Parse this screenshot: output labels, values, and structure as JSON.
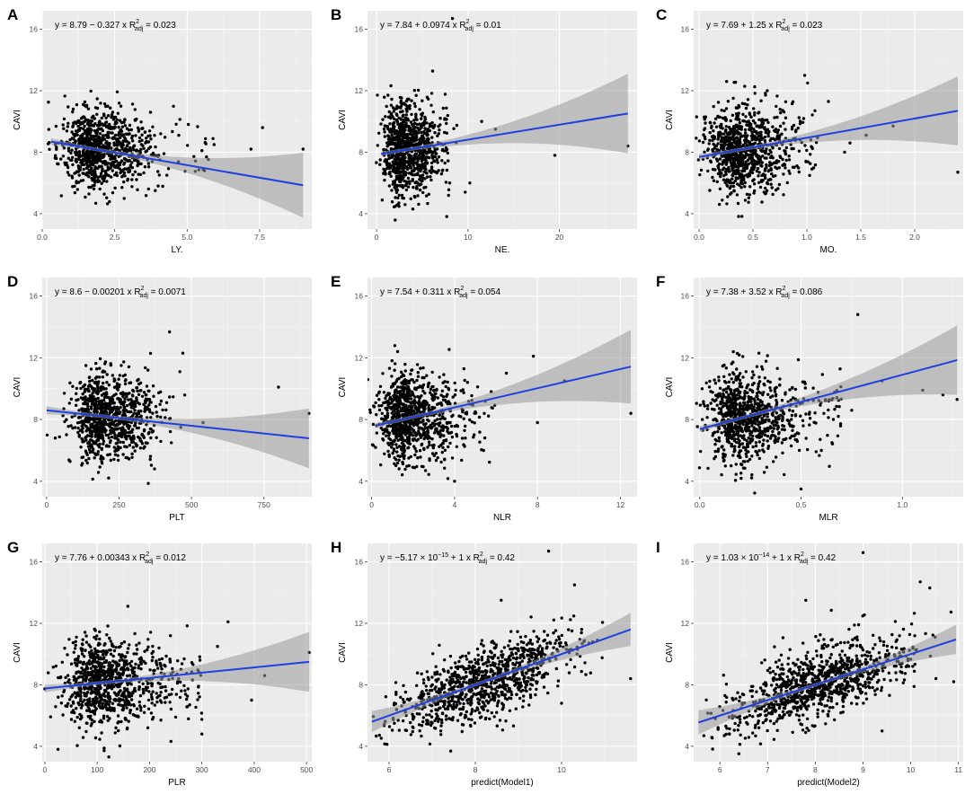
{
  "figure": {
    "type": "multi-panel scatter with linear regression",
    "colors": {
      "panel_bg": "#ebebeb",
      "grid_major": "#ffffff",
      "grid_minor": "#f5f5f5",
      "point": "#000000",
      "line": "#1f3fe0",
      "band": "#999999"
    }
  },
  "chart_data": [
    {
      "panel": "A",
      "type": "scatter",
      "xlabel": "LY.",
      "ylabel": "CAVI",
      "xlim": [
        0,
        9.3
      ],
      "ylim": [
        3,
        17.2
      ],
      "x_ticks": [
        0.0,
        2.5,
        5.0,
        7.5
      ],
      "x_tick_labels": [
        "0.0",
        "2.5",
        "5.0",
        "7.5"
      ],
      "y_ticks": [
        4,
        8,
        12,
        16
      ],
      "y_tick_labels": [
        "4",
        "8",
        "12",
        "16"
      ],
      "equation": {
        "lhs": "y = 8.79 − 0.327 x",
        "r": "R",
        "sup": "2",
        "sub": "adj",
        "rhs": " = 0.023"
      },
      "fit": {
        "intercept": 8.79,
        "slope": -0.327,
        "x_range": [
          0.3,
          9.0
        ]
      },
      "cloud": {
        "center": [
          1.9,
          8.2
        ],
        "sd": [
          0.6,
          1.3
        ],
        "n": 900,
        "extra_x": [
          [
            3.5,
            6.0
          ],
          0.03
        ]
      },
      "outliers": [
        [
          7.6,
          9.6
        ],
        [
          7.2,
          8.2
        ],
        [
          9.0,
          8.2
        ],
        [
          5.6,
          6.8
        ],
        [
          4.3,
          6.5
        ],
        [
          4.0,
          5.8
        ],
        [
          3.9,
          5.5
        ],
        [
          4.2,
          7.9
        ]
      ]
    },
    {
      "panel": "B",
      "type": "scatter",
      "xlabel": "NE.",
      "ylabel": "CAVI",
      "xlim": [
        -1,
        28.5
      ],
      "ylim": [
        3,
        17.2
      ],
      "x_ticks": [
        0,
        10,
        20
      ],
      "x_tick_labels": [
        "0",
        "10",
        "20"
      ],
      "y_ticks": [
        4,
        8,
        12,
        16
      ],
      "y_tick_labels": [
        "4",
        "8",
        "12",
        "16"
      ],
      "equation": {
        "lhs": "y = 7.84 + 0.0974 x",
        "r": "R",
        "sup": "2",
        "sub": "adj",
        "rhs": " = 0.01"
      },
      "fit": {
        "intercept": 7.84,
        "slope": 0.0974,
        "x_range": [
          0.5,
          27.5
        ]
      },
      "cloud": {
        "center": [
          3.0,
          8.2
        ],
        "sd": [
          1.1,
          1.5
        ],
        "n": 900,
        "extra_x": [
          [
            5,
            8
          ],
          0.05
        ]
      },
      "outliers": [
        [
          8.3,
          16.7
        ],
        [
          27.5,
          8.4
        ],
        [
          19.5,
          7.8
        ],
        [
          13.0,
          9.5
        ],
        [
          10.2,
          6.0
        ],
        [
          11.5,
          10.0
        ],
        [
          9.7,
          5.4
        ],
        [
          8.0,
          6.0
        ]
      ]
    },
    {
      "panel": "C",
      "type": "scatter",
      "xlabel": "MO.",
      "ylabel": "CAVI",
      "xlim": [
        -0.05,
        2.45
      ],
      "ylim": [
        3,
        17.2
      ],
      "x_ticks": [
        0.0,
        0.5,
        1.0,
        1.5,
        2.0
      ],
      "x_tick_labels": [
        "0.0",
        "0.5",
        "1.0",
        "1.5",
        "2.0"
      ],
      "y_ticks": [
        4,
        8,
        12,
        16
      ],
      "y_tick_labels": [
        "4",
        "8",
        "12",
        "16"
      ],
      "equation": {
        "lhs": "y = 7.69 + 1.25 x",
        "r": "R",
        "sup": "2",
        "sub": "adj",
        "rhs": " = 0.023"
      },
      "fit": {
        "intercept": 7.69,
        "slope": 1.25,
        "x_range": [
          0.0,
          2.4
        ]
      },
      "cloud": {
        "center": [
          0.38,
          8.3
        ],
        "sd": [
          0.15,
          1.4
        ],
        "n": 900,
        "extra_x": [
          [
            0.7,
            1.1
          ],
          0.04
        ]
      },
      "outliers": [
        [
          2.4,
          6.7
        ],
        [
          1.8,
          9.7
        ],
        [
          1.55,
          9.1
        ],
        [
          1.2,
          11.3
        ],
        [
          0.98,
          13.0
        ],
        [
          1.35,
          8.0
        ],
        [
          1.4,
          8.6
        ]
      ]
    },
    {
      "panel": "D",
      "type": "scatter",
      "xlabel": "PLT",
      "ylabel": "CAVI",
      "xlim": [
        -15,
        915
      ],
      "ylim": [
        3,
        17.2
      ],
      "x_ticks": [
        0,
        250,
        500,
        750
      ],
      "x_tick_labels": [
        "0",
        "250",
        "500",
        "750"
      ],
      "y_ticks": [
        4,
        8,
        12,
        16
      ],
      "y_tick_labels": [
        "4",
        "8",
        "12",
        "16"
      ],
      "equation": {
        "lhs": "y = 8.6 − 0.00201 x",
        "r": "R",
        "sup": "2",
        "sub": "adj",
        "rhs": " = 0.0071"
      },
      "fit": {
        "intercept": 8.6,
        "slope": -0.00201,
        "x_range": [
          0,
          905
        ]
      },
      "cloud": {
        "center": [
          200,
          8.2
        ],
        "sd": [
          55,
          1.4
        ],
        "n": 900,
        "extra_x": [
          [
            320,
            480
          ],
          0.02
        ]
      },
      "outliers": [
        [
          905,
          8.4
        ],
        [
          800,
          10.1
        ],
        [
          540,
          7.8
        ],
        [
          470,
          12.3
        ],
        [
          460,
          11.1
        ],
        [
          2,
          7.0
        ],
        [
          350,
          11.2
        ],
        [
          30,
          6.8
        ]
      ]
    },
    {
      "panel": "E",
      "type": "scatter",
      "xlabel": "NLR",
      "ylabel": "CAVI",
      "xlim": [
        -0.2,
        12.8
      ],
      "ylim": [
        3,
        17.2
      ],
      "x_ticks": [
        0,
        4,
        8,
        12
      ],
      "x_tick_labels": [
        "0",
        "4",
        "8",
        "12"
      ],
      "y_ticks": [
        4,
        8,
        12,
        16
      ],
      "y_tick_labels": [
        "4",
        "8",
        "12",
        "16"
      ],
      "equation": {
        "lhs": "y = 7.54 + 0.311 x",
        "r": "R",
        "sup": "2",
        "sub": "adj",
        "rhs": " = 0.054"
      },
      "fit": {
        "intercept": 7.54,
        "slope": 0.311,
        "x_range": [
          0.2,
          12.5
        ]
      },
      "cloud": {
        "center": [
          1.8,
          8.2
        ],
        "sd": [
          0.7,
          1.4
        ],
        "n": 900,
        "extra_x": [
          [
            3,
            6
          ],
          0.06
        ]
      },
      "outliers": [
        [
          12.5,
          8.4
        ],
        [
          9.3,
          10.5
        ],
        [
          8.0,
          7.8
        ],
        [
          7.8,
          12.1
        ],
        [
          6.5,
          11.0
        ],
        [
          5.0,
          8.5
        ],
        [
          5.4,
          6.0
        ],
        [
          4.0,
          4.0
        ]
      ]
    },
    {
      "panel": "F",
      "type": "scatter",
      "xlabel": "MLR",
      "ylabel": "CAVI",
      "xlim": [
        -0.03,
        1.3
      ],
      "ylim": [
        3,
        17.2
      ],
      "x_ticks": [
        0.0,
        0.5,
        1.0
      ],
      "x_tick_labels": [
        "0.0",
        "0.5",
        "1.0"
      ],
      "y_ticks": [
        4,
        8,
        12,
        16
      ],
      "y_tick_labels": [
        "4",
        "8",
        "12",
        "16"
      ],
      "equation": {
        "lhs": "y = 7.38 + 3.52 x",
        "r": "R",
        "sup": "2",
        "sub": "adj",
        "rhs": " = 0.086"
      },
      "fit": {
        "intercept": 7.38,
        "slope": 3.52,
        "x_range": [
          0.0,
          1.27
        ]
      },
      "cloud": {
        "center": [
          0.2,
          8.1
        ],
        "sd": [
          0.08,
          1.4
        ],
        "n": 900,
        "extra_x": [
          [
            0.35,
            0.7
          ],
          0.08
        ]
      },
      "outliers": [
        [
          1.27,
          9.3
        ],
        [
          1.2,
          9.6
        ],
        [
          1.1,
          9.9
        ],
        [
          0.78,
          14.8
        ],
        [
          0.75,
          8.6
        ],
        [
          0.6,
          6.0
        ],
        [
          0.5,
          3.5
        ],
        [
          0.9,
          10.5
        ]
      ]
    },
    {
      "panel": "G",
      "type": "scatter",
      "xlabel": "PLR",
      "ylabel": "CAVI",
      "xlim": [
        -5,
        510
      ],
      "ylim": [
        3,
        17.2
      ],
      "x_ticks": [
        0,
        100,
        200,
        300,
        400,
        500
      ],
      "x_tick_labels": [
        "0",
        "100",
        "200",
        "300",
        "400",
        "500"
      ],
      "y_ticks": [
        4,
        8,
        12,
        16
      ],
      "y_tick_labels": [
        "4",
        "8",
        "12",
        "16"
      ],
      "equation": {
        "lhs": "y = 7.76 + 0.00343 x",
        "r": "R",
        "sup": "2",
        "sub": "adj",
        "rhs": " = 0.012"
      },
      "fit": {
        "intercept": 7.76,
        "slope": 0.00343,
        "x_range": [
          0,
          505
        ]
      },
      "cloud": {
        "center": [
          110,
          8.2
        ],
        "sd": [
          35,
          1.4
        ],
        "n": 900,
        "extra_x": [
          [
            180,
            300
          ],
          0.08
        ]
      },
      "outliers": [
        [
          505,
          10.1
        ],
        [
          420,
          8.6
        ],
        [
          395,
          7.0
        ],
        [
          350,
          12.1
        ],
        [
          330,
          10.5
        ],
        [
          300,
          4.8
        ],
        [
          260,
          9.0
        ],
        [
          240,
          11.2
        ],
        [
          25,
          3.8
        ]
      ]
    },
    {
      "panel": "H",
      "type": "scatter",
      "xlabel": "predict(Model1)",
      "ylabel": "CAVI",
      "xlim": [
        5.5,
        11.75
      ],
      "ylim": [
        3,
        17.2
      ],
      "x_ticks": [
        6,
        8,
        10
      ],
      "x_tick_labels": [
        "6",
        "8",
        "10"
      ],
      "y_ticks": [
        4,
        8,
        12,
        16
      ],
      "y_tick_labels": [
        "4",
        "8",
        "12",
        "16"
      ],
      "equation": {
        "lhs": "y = −5.17 × 10",
        "lhs_sup": "−15",
        "lhs_tail": " + 1 x",
        "r": "R",
        "sup": "2",
        "sub": "adj",
        "rhs": " = 0.42"
      },
      "fit": {
        "intercept": 0,
        "slope": 1,
        "x_range": [
          5.6,
          11.6
        ]
      },
      "cloud": {
        "center": [
          8.2,
          8.2
        ],
        "sd": [
          1.0,
          1.0
        ],
        "n": 1000,
        "regress": true,
        "resid": 1.1
      },
      "outliers": [
        [
          9.7,
          16.7
        ],
        [
          11.6,
          8.4
        ],
        [
          10.3,
          14.5
        ],
        [
          8.6,
          13.5
        ],
        [
          10.0,
          6.8
        ],
        [
          6.7,
          5.4
        ],
        [
          7.2,
          5.0
        ]
      ]
    },
    {
      "panel": "I",
      "type": "scatter",
      "xlabel": "predict(Model2)",
      "ylabel": "CAVI",
      "xlim": [
        5.45,
        11.1
      ],
      "ylim": [
        3,
        17.2
      ],
      "x_ticks": [
        6,
        7,
        8,
        9,
        10,
        11
      ],
      "x_tick_labels": [
        "6",
        "7",
        "8",
        "9",
        "10",
        "11"
      ],
      "y_ticks": [
        4,
        8,
        12,
        16
      ],
      "y_tick_labels": [
        "4",
        "8",
        "12",
        "16"
      ],
      "equation": {
        "lhs": "y = 1.03 × 10",
        "lhs_sup": "−14",
        "lhs_tail": " + 1 x",
        "r": "R",
        "sup": "2",
        "sub": "adj",
        "rhs": " = 0.42"
      },
      "fit": {
        "intercept": 0,
        "slope": 1,
        "x_range": [
          5.55,
          10.95
        ]
      },
      "cloud": {
        "center": [
          8.1,
          8.1
        ],
        "sd": [
          0.95,
          0.95
        ],
        "n": 1000,
        "regress": true,
        "resid": 1.1
      },
      "outliers": [
        [
          9.0,
          16.6
        ],
        [
          10.2,
          14.7
        ],
        [
          10.4,
          14.3
        ],
        [
          7.8,
          13.5
        ],
        [
          9.4,
          5.0
        ],
        [
          6.2,
          4.8
        ],
        [
          10.9,
          8.2
        ]
      ]
    }
  ]
}
